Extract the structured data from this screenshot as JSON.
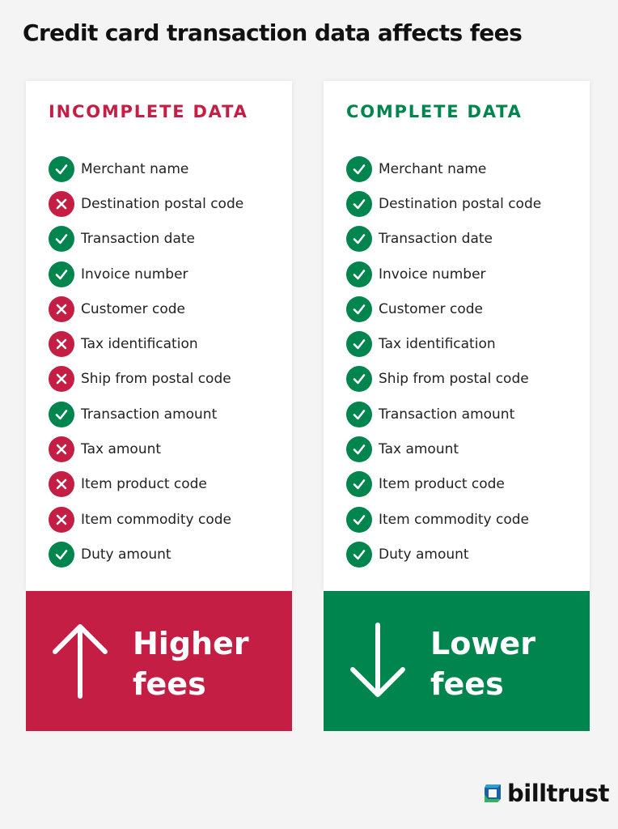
{
  "title": "Credit card transaction data affects fees",
  "colors": {
    "red": "#c41e45",
    "green": "#00854f",
    "background": "#f4f4f4"
  },
  "incomplete": {
    "heading": "INCOMPLETE DATA",
    "items": [
      {
        "label": "Merchant name",
        "status": "check"
      },
      {
        "label": "Destination postal code",
        "status": "cross"
      },
      {
        "label": "Transaction date",
        "status": "check"
      },
      {
        "label": "Invoice number",
        "status": "check"
      },
      {
        "label": "Customer code",
        "status": "cross"
      },
      {
        "label": "Tax identification",
        "status": "cross"
      },
      {
        "label": "Ship from postal code",
        "status": "cross"
      },
      {
        "label": "Transaction amount",
        "status": "check"
      },
      {
        "label": "Tax amount",
        "status": "cross"
      },
      {
        "label": "Item product code",
        "status": "cross"
      },
      {
        "label": "Item commodity code",
        "status": "cross"
      },
      {
        "label": "Duty amount",
        "status": "check"
      }
    ],
    "result_line1": "Higher",
    "result_line2": "fees",
    "result_icon": "arrow-up-icon"
  },
  "complete": {
    "heading": "COMPLETE DATA",
    "items": [
      {
        "label": "Merchant name",
        "status": "check"
      },
      {
        "label": "Destination postal code",
        "status": "check"
      },
      {
        "label": "Transaction date",
        "status": "check"
      },
      {
        "label": "Invoice number",
        "status": "check"
      },
      {
        "label": "Customer code",
        "status": "check"
      },
      {
        "label": "Tax identification",
        "status": "check"
      },
      {
        "label": "Ship from postal code",
        "status": "check"
      },
      {
        "label": "Transaction amount",
        "status": "check"
      },
      {
        "label": "Tax amount",
        "status": "check"
      },
      {
        "label": "Item product code",
        "status": "check"
      },
      {
        "label": "Item commodity code",
        "status": "check"
      },
      {
        "label": "Duty amount",
        "status": "check"
      }
    ],
    "result_line1": "Lower",
    "result_line2": "fees",
    "result_icon": "arrow-down-icon"
  },
  "logo": {
    "text": "billtrust"
  }
}
